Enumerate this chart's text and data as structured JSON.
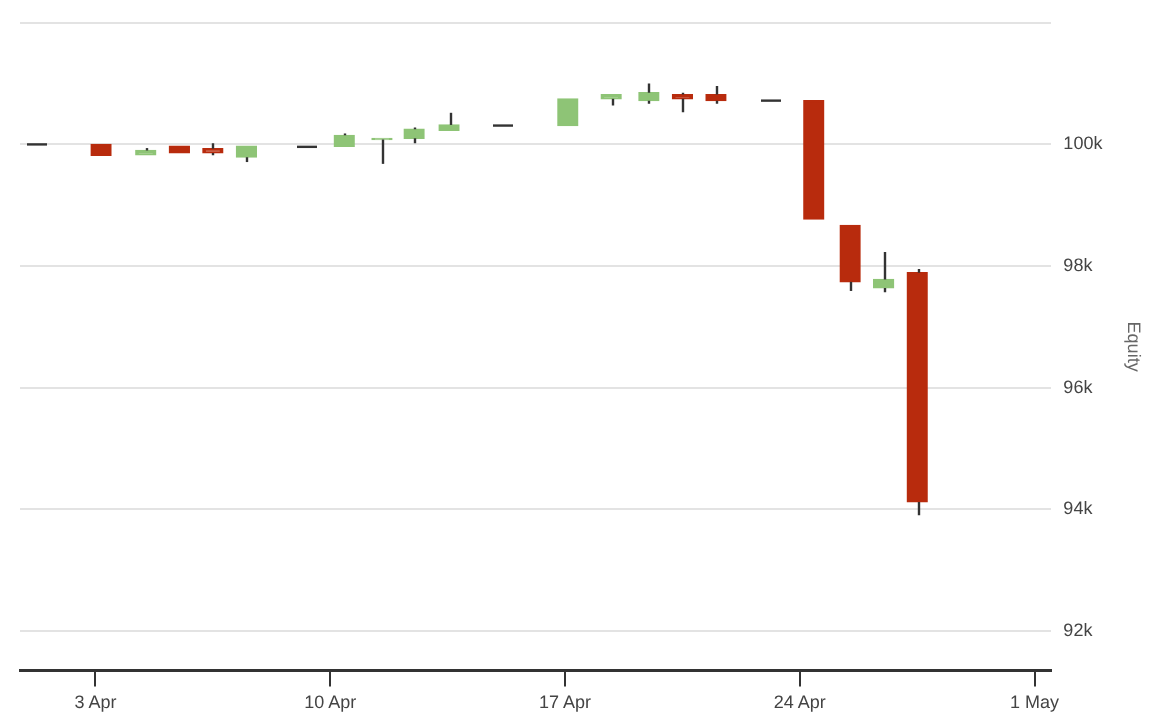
{
  "chart_data": {
    "type": "candlestick",
    "ylabel": "Equity",
    "x": [
      "--04-01T05:00",
      "--04-03T04:00",
      "--04-04T12:00",
      "--04-05T12:00",
      "--04-06T12:00",
      "--04-07T12:00",
      "--04-09T06:00",
      "--04-10T10:00",
      "--04-11T13:00",
      "--04-12T12:00",
      "--04-13T13:00",
      "--04-15T03:00",
      "--04-17T02:00",
      "--04-18T09:00",
      "--04-19T12:00",
      "--04-20T12:00",
      "--04-21T12:00",
      "--04-23T02:00",
      "--04-24T10:00",
      "--04-25T12:00",
      "--04-26T12:00",
      "--04-27T12:00"
    ],
    "ohlc": [
      [
        100000,
        100000,
        100000,
        100000
      ],
      [
        100000,
        100000,
        99820,
        99820
      ],
      [
        99830,
        99940,
        99830,
        99900
      ],
      [
        99970,
        99970,
        99860,
        99860
      ],
      [
        99930,
        100020,
        99820,
        99860
      ],
      [
        99790,
        99970,
        99710,
        99970
      ],
      [
        99960,
        99960,
        99960,
        99960
      ],
      [
        99970,
        100180,
        99970,
        100150
      ],
      [
        100080,
        100100,
        99680,
        100100
      ],
      [
        100100,
        100280,
        100020,
        100250
      ],
      [
        100230,
        100520,
        100230,
        100320
      ],
      [
        100310,
        100310,
        100310,
        100310
      ],
      [
        100310,
        100750,
        100310,
        100750
      ],
      [
        100750,
        100820,
        100640,
        100820
      ],
      [
        100720,
        101000,
        100670,
        100850
      ],
      [
        100820,
        100850,
        100530,
        100750
      ],
      [
        100820,
        100960,
        100670,
        100720
      ],
      [
        100720,
        100720,
        100720,
        100720
      ],
      [
        100720,
        100720,
        98770,
        98770
      ],
      [
        98670,
        98670,
        97590,
        97740
      ],
      [
        97640,
        98230,
        97570,
        97780
      ],
      [
        97890,
        97950,
        93900,
        94120
      ]
    ],
    "colors": [
      "#8ec476",
      "#b82b0d",
      "#8ec476",
      "#b82b0d",
      "#b82b0d",
      "#8ec476",
      "#8ec476",
      "#8ec476",
      "#8ec476",
      "#8ec476",
      "#8ec476",
      "#8ec476",
      "#8ec476",
      "#8ec476",
      "#8ec476",
      "#b82b0d",
      "#b82b0d",
      "#8ec476",
      "#b82b0d",
      "#b82b0d",
      "#8ec476",
      "#b82b0d"
    ],
    "xlim": [
      "--03-31T18:00",
      "--05-01T12:00"
    ],
    "xticks": [
      {
        "value": "--04-03",
        "label": "3 Apr"
      },
      {
        "value": "--04-10",
        "label": "10 Apr"
      },
      {
        "value": "--04-17",
        "label": "17 Apr"
      },
      {
        "value": "--04-24",
        "label": "24 Apr"
      },
      {
        "value": "--05-01",
        "label": "1 May"
      }
    ],
    "ylim": [
      91350,
      102000
    ],
    "yticks": [
      {
        "value": 92000,
        "label": "92k"
      },
      {
        "value": 94000,
        "label": "94k"
      },
      {
        "value": 96000,
        "label": "96k"
      },
      {
        "value": 98000,
        "label": "98k"
      },
      {
        "value": 100000,
        "label": "100k"
      },
      {
        "value": 102000,
        "label": null
      }
    ],
    "grid": "y",
    "legend": false
  }
}
